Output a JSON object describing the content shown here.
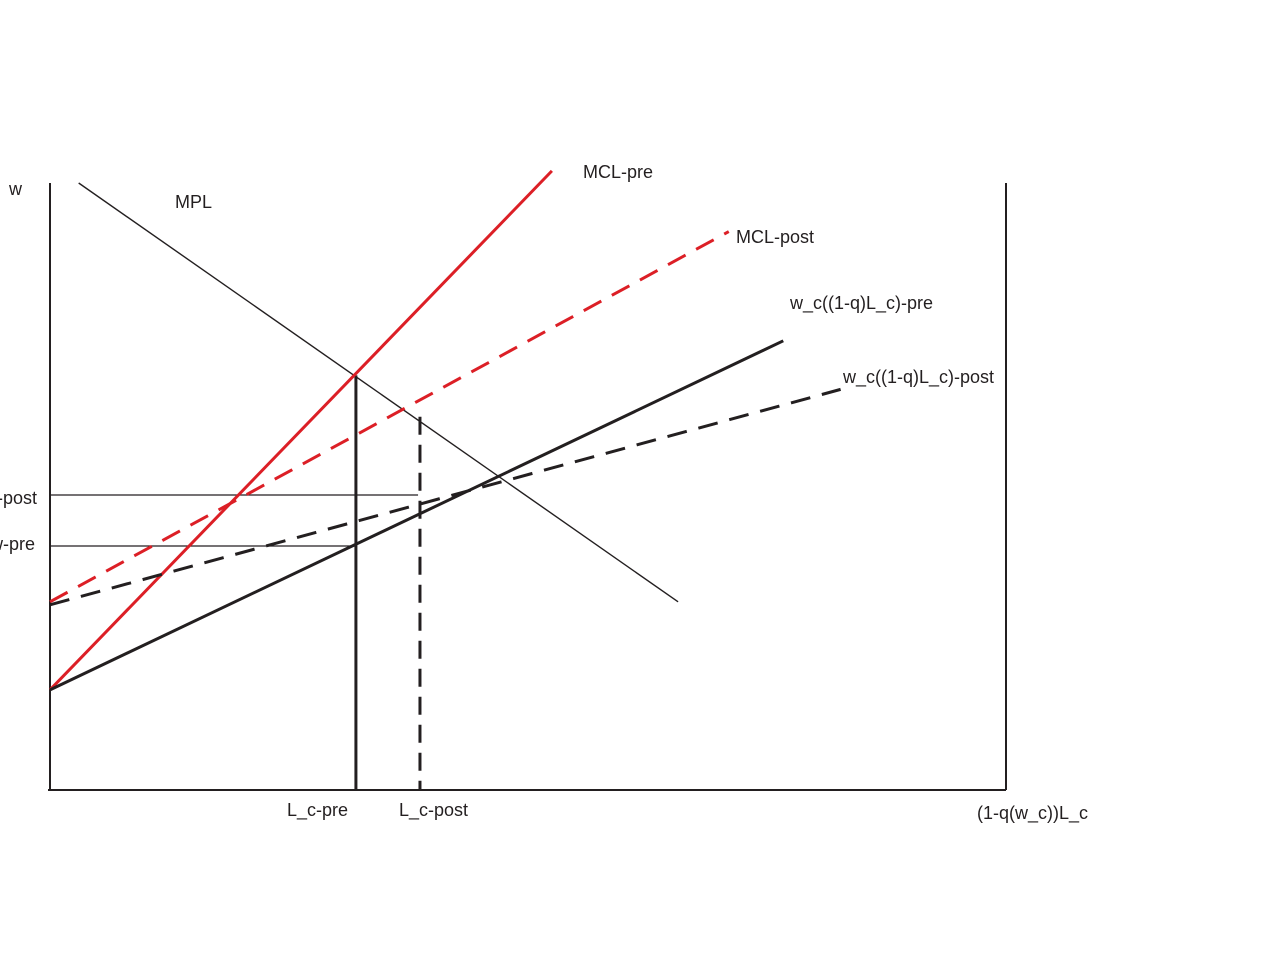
{
  "chart_data": {
    "type": "line",
    "title": "",
    "ylabel": "w",
    "xlabel": "(1-q(w_c))L_c",
    "xlim": [
      0,
      1000
    ],
    "ylim": [
      0,
      1000
    ],
    "grid": false,
    "series": [
      {
        "name": "MPL",
        "color": "#231f20",
        "dash": false,
        "weight": "thin",
        "x": [
          30,
          657
        ],
        "y": [
          1000,
          310
        ]
      },
      {
        "name": "MCL-pre",
        "color": "#dc1f26",
        "dash": false,
        "weight": "bold",
        "x": [
          0,
          525
        ],
        "y": [
          165,
          1020
        ]
      },
      {
        "name": "MCL-post",
        "color": "#dc1f26",
        "dash": true,
        "weight": "bold",
        "x": [
          0,
          710
        ],
        "y": [
          310,
          920
        ]
      },
      {
        "name": "w_c((1-q)L_c)-pre",
        "color": "#231f20",
        "dash": false,
        "weight": "bold",
        "x": [
          0,
          767
        ],
        "y": [
          165,
          740
        ]
      },
      {
        "name": "w_c((1-q)L_c)-post",
        "color": "#231f20",
        "dash": true,
        "weight": "bold",
        "x": [
          0,
          827
        ],
        "y": [
          305,
          660
        ]
      }
    ],
    "x_markers": [
      {
        "label": "L_c-pre",
        "x": 320,
        "y": 683,
        "dash": false
      },
      {
        "label": "L_c-post",
        "x": 387,
        "y": 615,
        "dash": true
      }
    ],
    "y_markers": [
      {
        "label": "w-post",
        "y": 486,
        "x": 385
      },
      {
        "label": "w-pre",
        "y": 402,
        "x": 320
      }
    ]
  }
}
